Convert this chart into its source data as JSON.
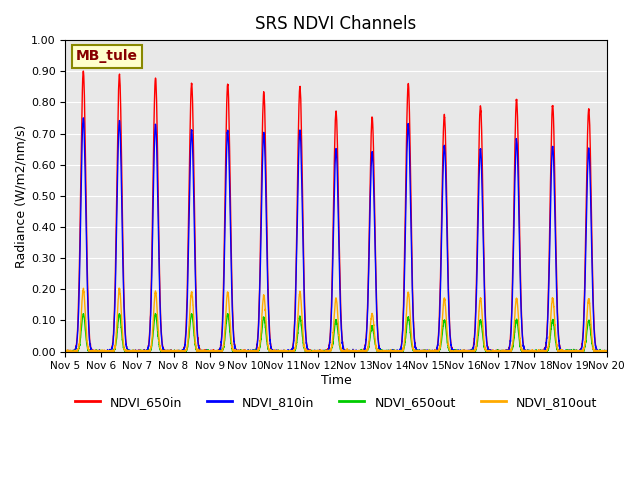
{
  "title": "SRS NDVI Channels",
  "xlabel": "Time",
  "ylabel": "Radiance (W/m2/nm/s)",
  "annotation": "MB_tule",
  "ylim": [
    0.0,
    1.0
  ],
  "yticks": [
    0.0,
    0.1,
    0.2,
    0.3,
    0.4,
    0.5,
    0.6,
    0.7,
    0.8,
    0.9,
    1.0
  ],
  "xtick_labels": [
    "Nov 5",
    "Nov 6",
    "Nov 7",
    "Nov 8",
    "Nov 9",
    "Nov 10",
    "Nov 11",
    "Nov 12",
    "Nov 13",
    "Nov 14",
    "Nov 15",
    "Nov 16",
    "Nov 17",
    "Nov 18",
    "Nov 19",
    "Nov 20"
  ],
  "colors": {
    "NDVI_650in": "#ff0000",
    "NDVI_810in": "#0000ff",
    "NDVI_650out": "#00cc00",
    "NDVI_810out": "#ffaa00"
  },
  "background_color": "#e8e8e8",
  "num_days": 15,
  "peaks_650in": [
    0.9,
    0.89,
    0.88,
    0.86,
    0.86,
    0.83,
    0.85,
    0.77,
    0.75,
    0.86,
    0.76,
    0.79,
    0.81,
    0.79,
    0.78
  ],
  "peaks_810in": [
    0.75,
    0.74,
    0.73,
    0.71,
    0.71,
    0.7,
    0.71,
    0.65,
    0.64,
    0.73,
    0.66,
    0.65,
    0.68,
    0.66,
    0.65
  ],
  "peaks_650out": [
    0.12,
    0.12,
    0.12,
    0.12,
    0.12,
    0.11,
    0.11,
    0.1,
    0.08,
    0.11,
    0.1,
    0.1,
    0.1,
    0.1,
    0.1
  ],
  "peaks_810out": [
    0.2,
    0.2,
    0.19,
    0.19,
    0.19,
    0.18,
    0.19,
    0.17,
    0.12,
    0.19,
    0.17,
    0.17,
    0.17,
    0.17,
    0.17
  ],
  "linewidth": 1.0
}
